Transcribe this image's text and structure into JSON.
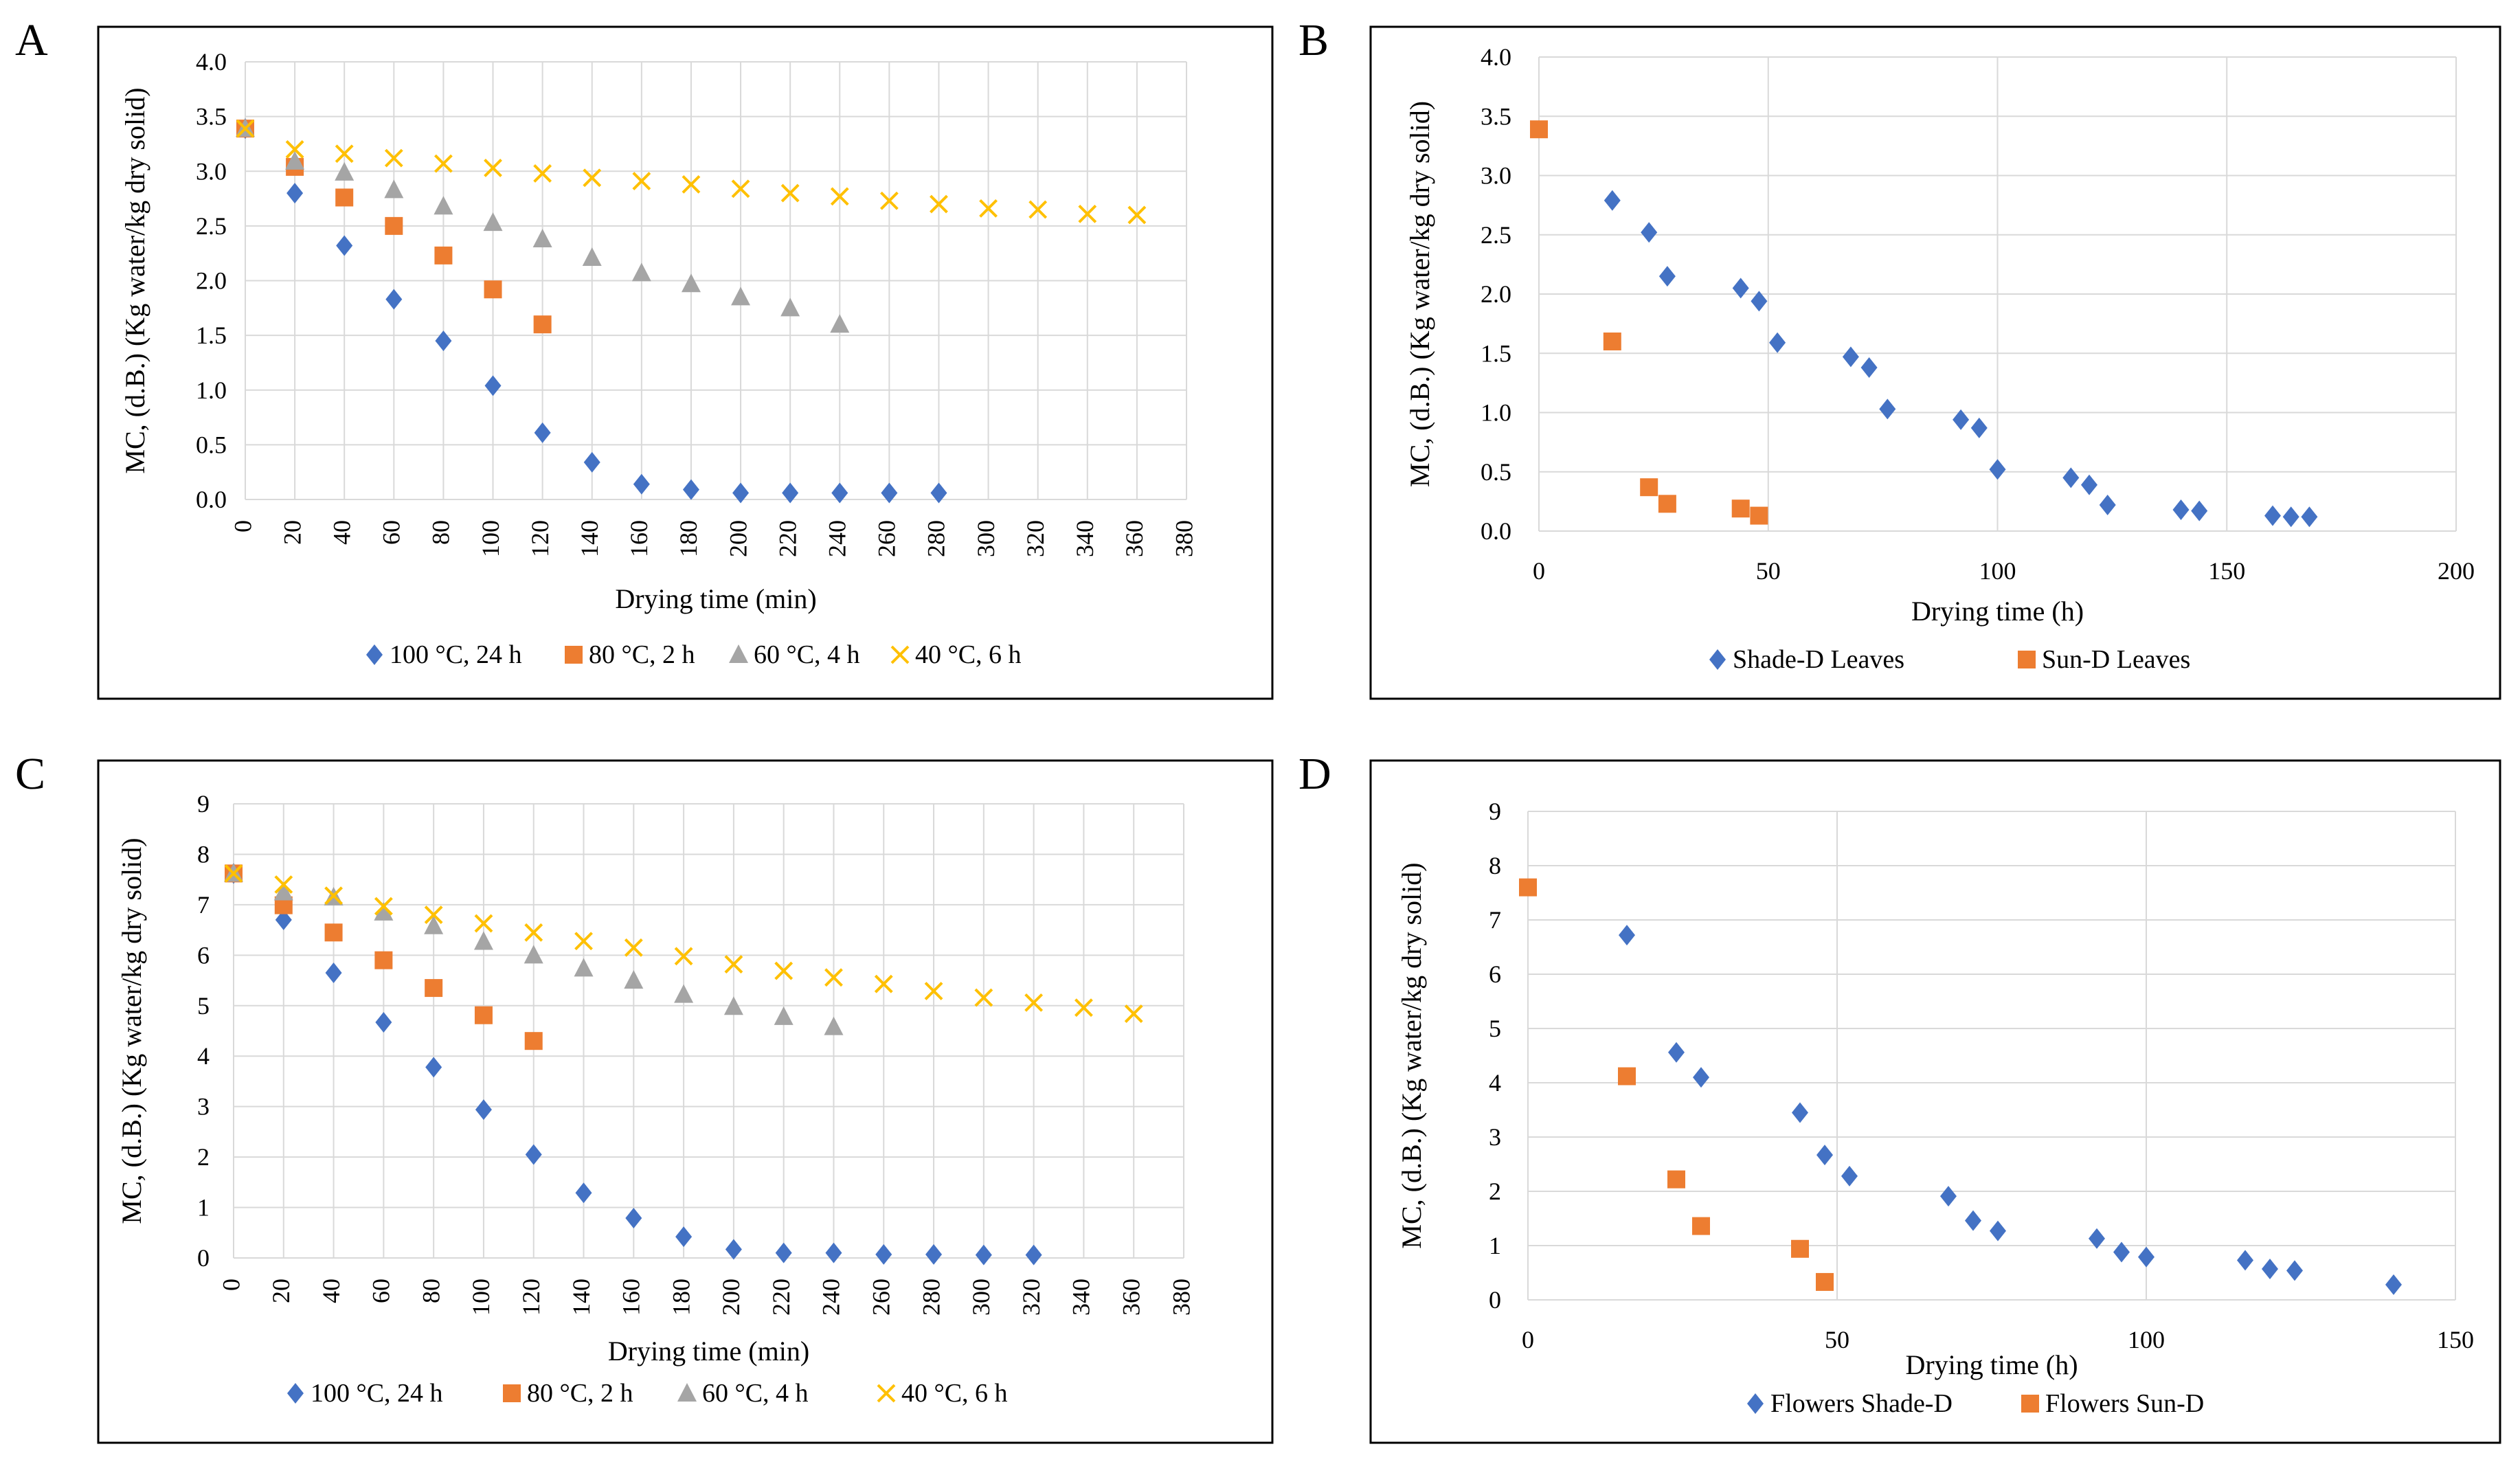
{
  "figure": {
    "panels": [
      "A",
      "B",
      "C",
      "D"
    ]
  },
  "colors": {
    "blue": "#4472C4",
    "orange": "#ED7D31",
    "gray": "#A5A5A5",
    "yellow": "#FFC000",
    "grid": "#D9D9D9",
    "frame": "#000000"
  },
  "chart_data": [
    {
      "panel": "A",
      "type": "scatter",
      "xlabel": "Drying time (min)",
      "ylabel": "MC, (d.B.) (Kg water/kg dry solid)",
      "xlim": [
        0,
        380
      ],
      "ylim": [
        0,
        4
      ],
      "xticks": [
        "0",
        "20",
        "40",
        "60",
        "80",
        "100",
        "120",
        "140",
        "160",
        "180",
        "200",
        "220",
        "240",
        "260",
        "280",
        "300",
        "320",
        "340",
        "360",
        "380"
      ],
      "yticks": [
        "0.0",
        "0.5",
        "1.0",
        "1.5",
        "2.0",
        "2.5",
        "3.0",
        "3.5",
        "4.0"
      ],
      "grid": true,
      "legend_position": "bottom",
      "series": [
        {
          "name": "100 °C, 24 h",
          "marker": "diamond",
          "color": "blue",
          "x": [
            0,
            20,
            40,
            60,
            80,
            100,
            120,
            140,
            160,
            180,
            200,
            220,
            240,
            260,
            280
          ],
          "y": [
            3.39,
            2.8,
            2.32,
            1.83,
            1.45,
            1.04,
            0.61,
            0.34,
            0.14,
            0.09,
            0.06,
            0.06,
            0.06,
            0.06,
            0.06
          ]
        },
        {
          "name": "80 °C, 2 h",
          "marker": "square",
          "color": "orange",
          "x": [
            0,
            20,
            40,
            60,
            80,
            100,
            120
          ],
          "y": [
            3.39,
            3.04,
            2.76,
            2.5,
            2.23,
            1.92,
            1.6
          ]
        },
        {
          "name": "60 °C, 4 h",
          "marker": "triangle",
          "color": "gray",
          "x": [
            0,
            20,
            40,
            60,
            80,
            100,
            120,
            140,
            160,
            180,
            200,
            220,
            240
          ],
          "y": [
            3.39,
            3.09,
            2.99,
            2.83,
            2.68,
            2.53,
            2.38,
            2.21,
            2.07,
            1.97,
            1.85,
            1.75,
            1.6
          ]
        },
        {
          "name": "40 °C, 6 h",
          "marker": "x",
          "color": "yellow",
          "x": [
            0,
            20,
            40,
            60,
            80,
            100,
            120,
            140,
            160,
            180,
            200,
            220,
            240,
            260,
            280,
            300,
            320,
            340,
            360
          ],
          "y": [
            3.39,
            3.2,
            3.16,
            3.12,
            3.07,
            3.03,
            2.98,
            2.94,
            2.91,
            2.88,
            2.84,
            2.8,
            2.77,
            2.73,
            2.7,
            2.66,
            2.65,
            2.61,
            2.6
          ]
        }
      ]
    },
    {
      "panel": "B",
      "type": "scatter",
      "xlabel": "Drying time (h)",
      "ylabel": "MC, (d.B.) (Kg water/kg dry solid)",
      "xlim": [
        0,
        200
      ],
      "ylim": [
        0,
        4
      ],
      "xticks": [
        "0",
        "50",
        "100",
        "150",
        "200"
      ],
      "yticks": [
        "0.0",
        "0.5",
        "1.0",
        "1.5",
        "2.0",
        "2.5",
        "3.0",
        "3.5",
        "4.0"
      ],
      "grid": true,
      "legend_position": "bottom",
      "series": [
        {
          "name": "Shade-D Leaves",
          "marker": "diamond",
          "color": "blue",
          "x": [
            16,
            24,
            28,
            44,
            48,
            52,
            68,
            72,
            76,
            92,
            96,
            100,
            116,
            120,
            124,
            140,
            144,
            160,
            164,
            168
          ],
          "y": [
            2.79,
            2.52,
            2.15,
            2.05,
            1.94,
            1.59,
            1.47,
            1.38,
            1.03,
            0.94,
            0.87,
            0.52,
            0.45,
            0.39,
            0.22,
            0.18,
            0.17,
            0.13,
            0.12,
            0.12
          ]
        },
        {
          "name": "Sun-D Leaves",
          "marker": "square",
          "color": "orange",
          "x": [
            0,
            16,
            24,
            28,
            44,
            48
          ],
          "y": [
            3.39,
            1.6,
            0.37,
            0.23,
            0.19,
            0.13
          ]
        }
      ]
    },
    {
      "panel": "C",
      "type": "scatter",
      "xlabel": "Drying time (min)",
      "ylabel": "MC, (d.B.) (Kg water/kg dry solid)",
      "xlim": [
        0,
        380
      ],
      "ylim": [
        0,
        9
      ],
      "xticks": [
        "0",
        "20",
        "40",
        "60",
        "80",
        "100",
        "120",
        "140",
        "160",
        "180",
        "200",
        "220",
        "240",
        "260",
        "280",
        "300",
        "320",
        "340",
        "360",
        "380"
      ],
      "yticks": [
        "0",
        "1",
        "2",
        "3",
        "4",
        "5",
        "6",
        "7",
        "8",
        "9"
      ],
      "grid": true,
      "legend_position": "bottom",
      "series": [
        {
          "name": "100 °C, 24 h",
          "marker": "diamond",
          "color": "blue",
          "x": [
            0,
            20,
            40,
            60,
            80,
            100,
            120,
            140,
            160,
            180,
            200,
            220,
            240,
            260,
            280,
            300,
            320
          ],
          "y": [
            7.62,
            6.7,
            5.65,
            4.67,
            3.78,
            2.94,
            2.05,
            1.29,
            0.79,
            0.42,
            0.17,
            0.1,
            0.1,
            0.07,
            0.07,
            0.06,
            0.06
          ]
        },
        {
          "name": "80 °C, 2 h",
          "marker": "square",
          "color": "orange",
          "x": [
            0,
            20,
            40,
            60,
            80,
            100,
            120
          ],
          "y": [
            7.62,
            6.99,
            6.45,
            5.9,
            5.35,
            4.81,
            4.3
          ]
        },
        {
          "name": "60 °C, 4 h",
          "marker": "triangle",
          "color": "gray",
          "x": [
            0,
            20,
            40,
            60,
            80,
            100,
            120,
            140,
            160,
            180,
            200,
            220,
            240
          ],
          "y": [
            7.62,
            7.25,
            7.15,
            6.85,
            6.58,
            6.27,
            6.0,
            5.74,
            5.5,
            5.22,
            4.98,
            4.78,
            4.58
          ]
        },
        {
          "name": "40 °C, 6 h",
          "marker": "x",
          "color": "yellow",
          "x": [
            0,
            20,
            40,
            60,
            80,
            100,
            120,
            140,
            160,
            180,
            200,
            220,
            240,
            260,
            280,
            300,
            320,
            340,
            360
          ],
          "y": [
            7.62,
            7.4,
            7.18,
            6.97,
            6.8,
            6.63,
            6.45,
            6.28,
            6.15,
            5.98,
            5.82,
            5.69,
            5.56,
            5.43,
            5.29,
            5.16,
            5.06,
            4.96,
            4.84
          ]
        }
      ]
    },
    {
      "panel": "D",
      "type": "scatter",
      "xlabel": "Drying time (h)",
      "ylabel": "MC, (d.B.) (Kg water/kg dry solid)",
      "xlim": [
        0,
        150
      ],
      "ylim": [
        0,
        9
      ],
      "xticks": [
        "0",
        "50",
        "100",
        "150"
      ],
      "yticks": [
        "0",
        "1",
        "2",
        "3",
        "4",
        "5",
        "6",
        "7",
        "8",
        "9"
      ],
      "grid": true,
      "legend_position": "bottom",
      "series": [
        {
          "name": "Flowers Shade-D",
          "marker": "diamond",
          "color": "blue",
          "x": [
            16,
            24,
            28,
            44,
            48,
            52,
            68,
            72,
            76,
            92,
            96,
            100,
            116,
            120,
            124,
            140
          ],
          "y": [
            6.72,
            4.56,
            4.1,
            3.45,
            2.67,
            2.28,
            1.91,
            1.46,
            1.27,
            1.13,
            0.88,
            0.79,
            0.73,
            0.57,
            0.54,
            0.28
          ]
        },
        {
          "name": "Flowers Sun-D",
          "marker": "square",
          "color": "orange",
          "x": [
            0,
            16,
            24,
            28,
            44,
            48
          ],
          "y": [
            7.6,
            4.12,
            2.22,
            1.36,
            0.94,
            0.33
          ]
        }
      ]
    }
  ]
}
